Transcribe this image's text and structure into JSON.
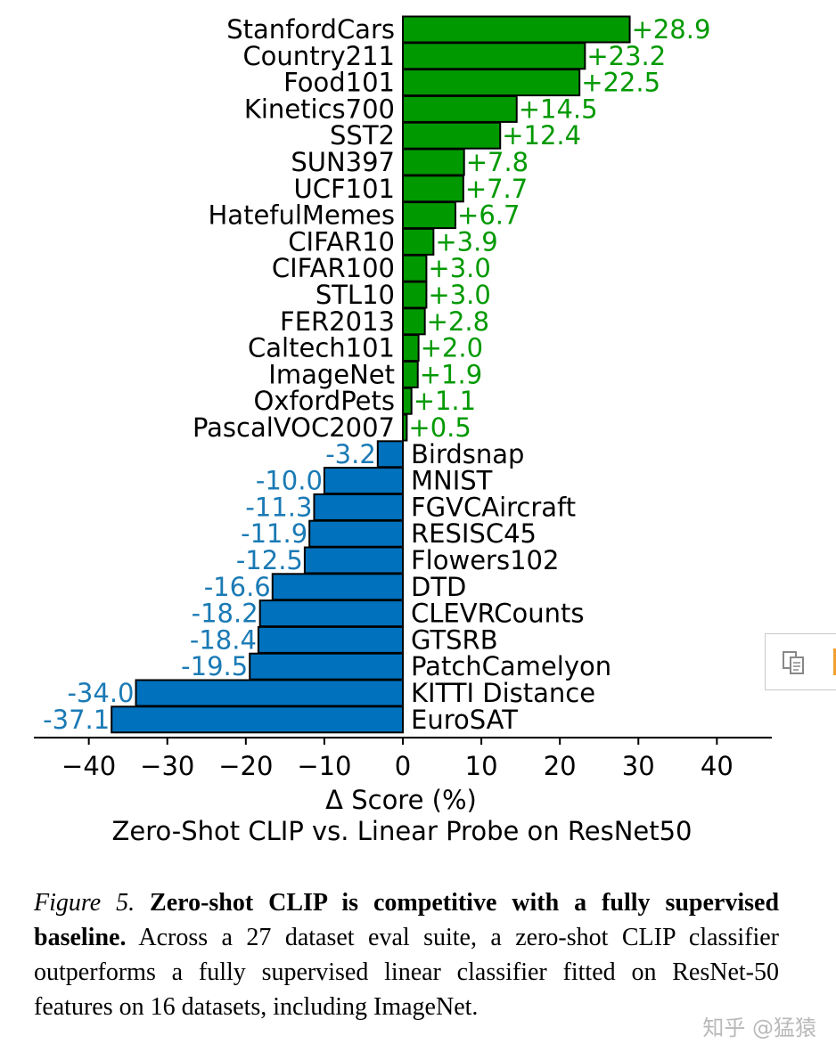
{
  "chart_data": {
    "type": "bar",
    "orientation": "horizontal",
    "categories": [
      "StanfordCars",
      "Country211",
      "Food101",
      "Kinetics700",
      "SST2",
      "SUN397",
      "UCF101",
      "HatefulMemes",
      "CIFAR10",
      "CIFAR100",
      "STL10",
      "FER2013",
      "Caltech101",
      "ImageNet",
      "OxfordPets",
      "PascalVOC2007",
      "Birdsnap",
      "MNIST",
      "FGVCAircraft",
      "RESISC45",
      "Flowers102",
      "DTD",
      "CLEVRCounts",
      "GTSRB",
      "PatchCamelyon",
      "KITTI Distance",
      "EuroSAT"
    ],
    "values": [
      28.9,
      23.2,
      22.5,
      14.5,
      12.4,
      7.8,
      7.7,
      6.7,
      3.9,
      3.0,
      3.0,
      2.8,
      2.0,
      1.9,
      1.1,
      0.5,
      -3.2,
      -10.0,
      -11.3,
      -11.9,
      -12.5,
      -16.6,
      -18.2,
      -18.4,
      -19.5,
      -34.0,
      -37.1
    ],
    "value_labels": [
      "+28.9",
      "+23.2",
      "+22.5",
      "+14.5",
      "+12.4",
      "+7.8",
      "+7.7",
      "+6.7",
      "+3.9",
      "+3.0",
      "+3.0",
      "+2.8",
      "+2.0",
      "+1.9",
      "+1.1",
      "+0.5",
      "-3.2",
      "-10.0",
      "-11.3",
      "-11.9",
      "-12.5",
      "-16.6",
      "-18.2",
      "-18.4",
      "-19.5",
      "-34.0",
      "-37.1"
    ],
    "xlim": [
      -47,
      47
    ],
    "xticks": [
      -40,
      -30,
      -20,
      -10,
      0,
      10,
      20,
      30,
      40
    ],
    "xtick_labels": [
      "−40",
      "−30",
      "−20",
      "−10",
      "0",
      "10",
      "20",
      "30",
      "40"
    ],
    "xlabel": "Δ Score (%)",
    "title": "Zero-Shot CLIP vs. Linear Probe on ResNet50",
    "colors": {
      "positive": "#009900",
      "negative": "#0072bd",
      "positive_text": "#009900",
      "negative_text": "#1a7ab5"
    }
  },
  "caption": {
    "figure_label": "Figure 5.",
    "bold_text": "Zero-shot CLIP is competitive with a fully supervised baseline.",
    "body": "Across a 27 dataset eval suite, a zero-shot CLIP classifier outperforms a fully supervised linear classifier fitted on ResNet-50 features on 16 datasets, including ImageNet."
  },
  "watermark": "知乎 @猛猿"
}
